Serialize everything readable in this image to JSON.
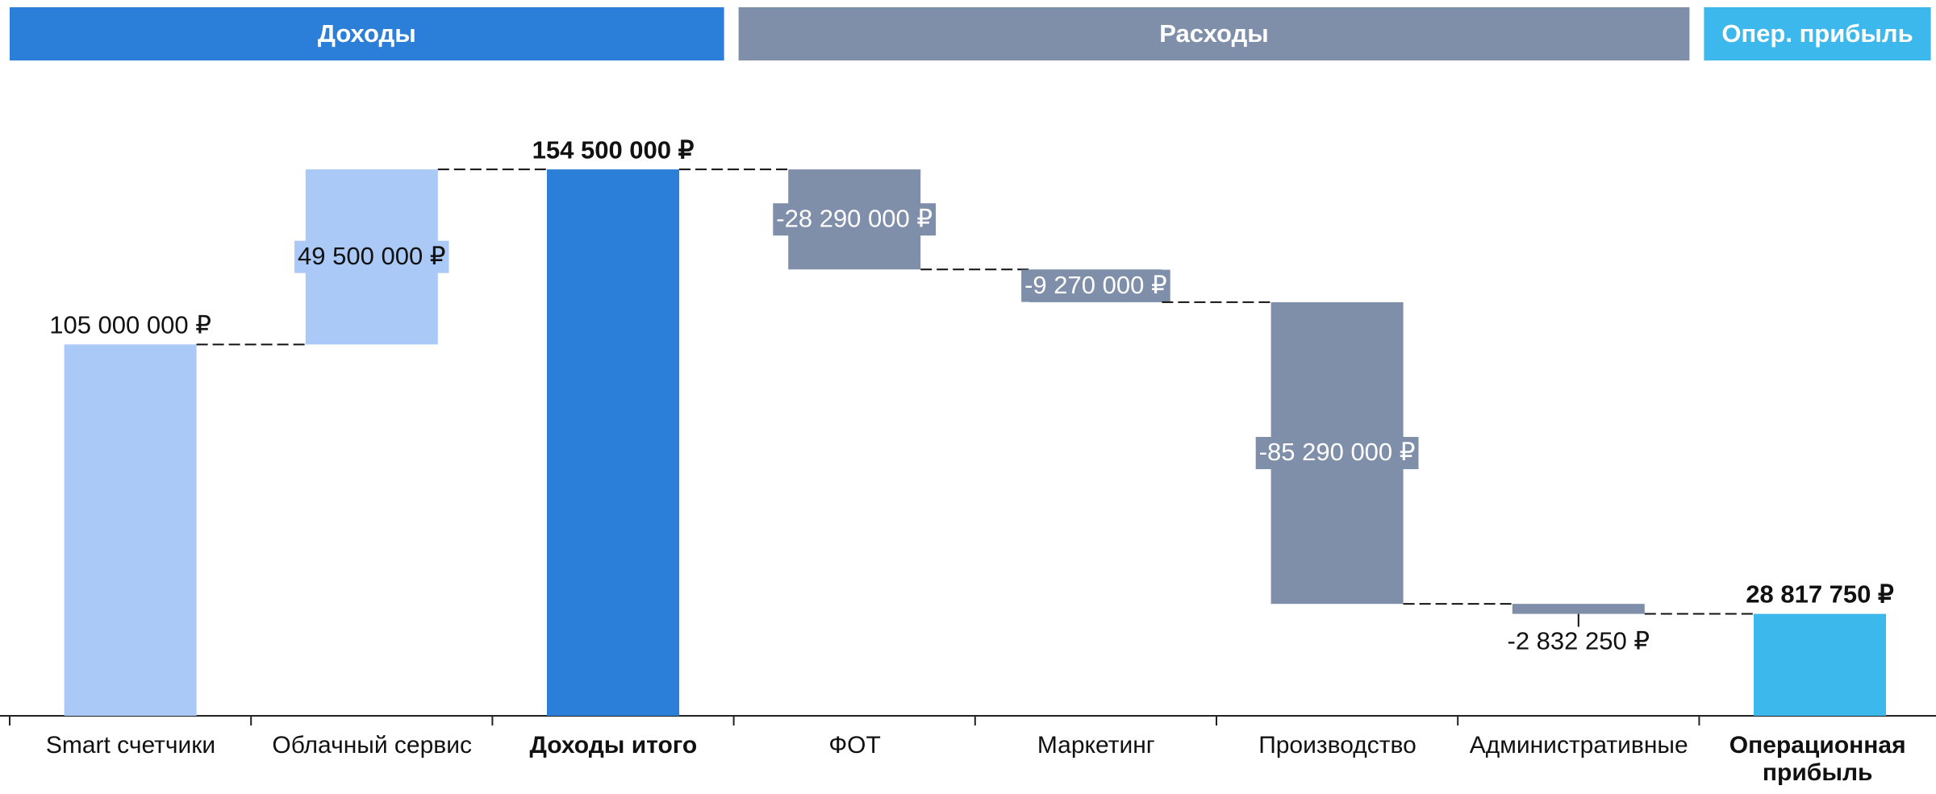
{
  "chart_data": {
    "type": "waterfall",
    "groups": [
      {
        "label": "Доходы",
        "color": "#2b7fd8",
        "span": 3
      },
      {
        "label": "Расходы",
        "color": "#7f8fa9",
        "span": 4
      },
      {
        "label": "Опер. прибыль",
        "color": "#3cb8ec",
        "span": 1
      }
    ],
    "categories": [
      "Smart счетчики",
      "Облачный сервис",
      "Доходы итого",
      "ФОТ",
      "Маркетинг",
      "Производство",
      "Административные",
      "Операционная прибыль"
    ],
    "values": [
      105000000,
      49500000,
      154500000,
      -28290000,
      -9270000,
      -85290000,
      -2832250,
      28817750
    ],
    "value_labels": [
      "105 000 000 ₽",
      "49 500 000 ₽",
      "154 500 000 ₽",
      "-28 290 000 ₽",
      "-9 270 000 ₽",
      "-85 290 000 ₽",
      "-2 832 250 ₽",
      "28 817 750 ₽"
    ],
    "is_total": [
      false,
      false,
      true,
      false,
      false,
      false,
      false,
      true
    ],
    "colors": [
      "#abc9f7",
      "#abc9f7",
      "#2b7fd8",
      "#7f8fa9",
      "#7f8fa9",
      "#7f8fa9",
      "#7f8fa9",
      "#3cb8ec"
    ],
    "ylim": [
      0,
      160000000
    ]
  }
}
